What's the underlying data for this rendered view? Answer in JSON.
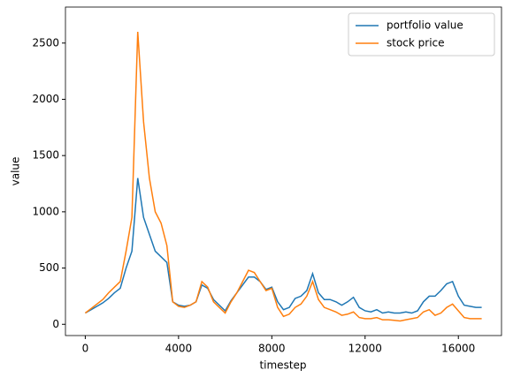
{
  "chart_data": {
    "type": "line",
    "xlabel": "timestep",
    "ylabel": "value",
    "x": [
      0,
      250,
      500,
      750,
      1000,
      1250,
      1500,
      1750,
      2000,
      2250,
      2500,
      2750,
      3000,
      3250,
      3500,
      3750,
      4000,
      4250,
      4500,
      4750,
      5000,
      5250,
      5500,
      5750,
      6000,
      6250,
      6500,
      6750,
      7000,
      7250,
      7500,
      7750,
      8000,
      8250,
      8500,
      8750,
      9000,
      9250,
      9500,
      9750,
      10000,
      10250,
      10500,
      10750,
      11000,
      11250,
      11500,
      11750,
      12000,
      12250,
      12500,
      12750,
      13000,
      13250,
      13500,
      13750,
      14000,
      14250,
      14500,
      14750,
      15000,
      15250,
      15500,
      15750,
      16000,
      16250,
      16500,
      16750,
      17000
    ],
    "series": [
      {
        "name": "portfolio value",
        "color": "#1f77b4",
        "values": [
          100,
          130,
          160,
          190,
          230,
          280,
          320,
          500,
          650,
          1300,
          950,
          800,
          650,
          600,
          550,
          200,
          170,
          160,
          170,
          200,
          350,
          320,
          220,
          170,
          120,
          210,
          280,
          350,
          420,
          420,
          380,
          310,
          330,
          200,
          130,
          150,
          230,
          250,
          300,
          450,
          280,
          220,
          220,
          200,
          170,
          200,
          240,
          150,
          120,
          110,
          130,
          100,
          110,
          100,
          100,
          110,
          100,
          120,
          200,
          250,
          250,
          300,
          360,
          380,
          250,
          170,
          160,
          150,
          150
        ]
      },
      {
        "name": "stock price",
        "color": "#ff7f0e",
        "values": [
          100,
          140,
          180,
          220,
          280,
          330,
          380,
          650,
          950,
          2600,
          1800,
          1300,
          1000,
          900,
          700,
          200,
          160,
          150,
          170,
          200,
          380,
          330,
          200,
          150,
          100,
          200,
          280,
          380,
          480,
          460,
          380,
          300,
          320,
          150,
          70,
          90,
          150,
          180,
          250,
          380,
          220,
          150,
          130,
          110,
          80,
          90,
          110,
          60,
          50,
          50,
          60,
          40,
          40,
          35,
          30,
          40,
          50,
          60,
          110,
          130,
          80,
          100,
          150,
          180,
          120,
          60,
          50,
          50,
          50
        ]
      }
    ],
    "xlim": [
      -850,
      17850
    ],
    "ylim": [
      -100,
      2820
    ],
    "xticks": [
      0,
      4000,
      8000,
      12000,
      16000
    ],
    "yticks": [
      0,
      500,
      1000,
      1500,
      2000,
      2500
    ],
    "legend": "upper right"
  }
}
